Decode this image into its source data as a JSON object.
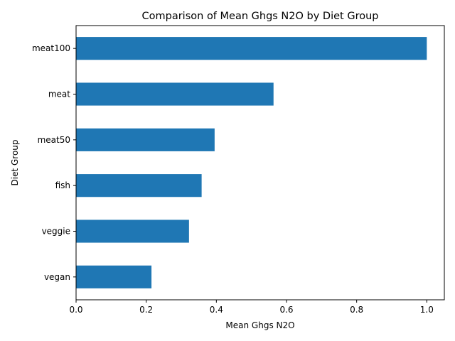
{
  "chart_data": {
    "type": "bar",
    "orientation": "horizontal",
    "title": "Comparison of Mean Ghgs N2O by Diet Group",
    "xlabel": "Mean Ghgs N2O",
    "ylabel": "Diet Group",
    "categories": [
      "vegan",
      "veggie",
      "fish",
      "meat50",
      "meat",
      "meat100"
    ],
    "values": [
      0.215,
      0.322,
      0.358,
      0.395,
      0.563,
      1.0
    ],
    "xlim": [
      0.0,
      1.05
    ],
    "xticks": [
      "0.0",
      "0.2",
      "0.4",
      "0.6",
      "0.8",
      "1.0"
    ],
    "xtick_values": [
      0.0,
      0.2,
      0.4,
      0.6,
      0.8,
      1.0
    ],
    "grid": false,
    "legend": "none",
    "bar_color": "#1f77b4"
  }
}
